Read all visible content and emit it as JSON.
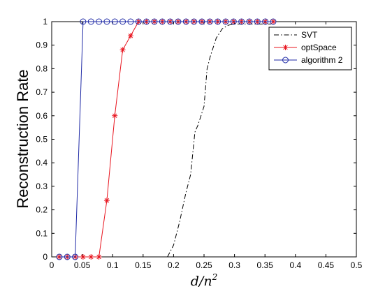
{
  "chart_data": {
    "type": "line",
    "title": "",
    "xlabel": "d/n",
    "xlabel_superscript": "2",
    "ylabel": "Reconstruction Rate",
    "xlim": [
      0,
      0.5
    ],
    "ylim": [
      0,
      1
    ],
    "x_ticks": [
      "0",
      "0.05",
      "0.1",
      "0.15",
      "0.2",
      "0.25",
      "0.3",
      "0.35",
      "0.4",
      "0.45",
      "0.5"
    ],
    "y_ticks": [
      "0",
      "0.1",
      "0.2",
      "0.3",
      "0.4",
      "0.5",
      "0.6",
      "0.7",
      "0.8",
      "0.9",
      "1"
    ],
    "grid": false,
    "legend_position": "top-right",
    "series": [
      {
        "name": "SVT",
        "color": "#000000",
        "line_style": "dash-dot",
        "marker": "none",
        "x": [
          0.19,
          0.2,
          0.21,
          0.22,
          0.228,
          0.235,
          0.24,
          0.25,
          0.255,
          0.26,
          0.27,
          0.28,
          0.29,
          0.3,
          0.36
        ],
        "y": [
          0.0,
          0.05,
          0.15,
          0.27,
          0.35,
          0.53,
          0.56,
          0.64,
          0.8,
          0.85,
          0.93,
          0.97,
          0.985,
          0.99,
          0.99
        ]
      },
      {
        "name": "optSpace",
        "color": "#e8141e",
        "line_style": "solid",
        "marker": "star",
        "x": [
          0.0125,
          0.0255,
          0.0385,
          0.0515,
          0.0645,
          0.0775,
          0.0905,
          0.1035,
          0.1165,
          0.1295,
          0.1425,
          0.1555,
          0.1685,
          0.1815,
          0.1945,
          0.2075,
          0.2205,
          0.2335,
          0.2465,
          0.2595,
          0.2725,
          0.2855,
          0.2985,
          0.3115,
          0.3245,
          0.3375,
          0.3505,
          0.3635
        ],
        "y": [
          0,
          0,
          0,
          0,
          0,
          0,
          0.24,
          0.6,
          0.88,
          0.94,
          1,
          1,
          1,
          1,
          1,
          1,
          1,
          1,
          1,
          1,
          1,
          1,
          1,
          1,
          1,
          1,
          1,
          1
        ]
      },
      {
        "name": "algorithm 2",
        "color": "#1f2aa6",
        "line_style": "solid",
        "marker": "circle",
        "x": [
          0.0125,
          0.0255,
          0.0385,
          0.0515,
          0.0645,
          0.0775,
          0.0905,
          0.1035,
          0.1165,
          0.1295,
          0.1425,
          0.1555,
          0.1685,
          0.1815,
          0.1945,
          0.2075,
          0.2205,
          0.2335,
          0.2465,
          0.2595,
          0.2725,
          0.2855,
          0.2985,
          0.3115,
          0.3245,
          0.3375,
          0.3505,
          0.3635
        ],
        "y": [
          0,
          0,
          0,
          1,
          1,
          1,
          1,
          1,
          1,
          1,
          1,
          1,
          1,
          1,
          1,
          1,
          1,
          1,
          1,
          1,
          1,
          1,
          1,
          1,
          1,
          1,
          1,
          1
        ]
      }
    ]
  }
}
